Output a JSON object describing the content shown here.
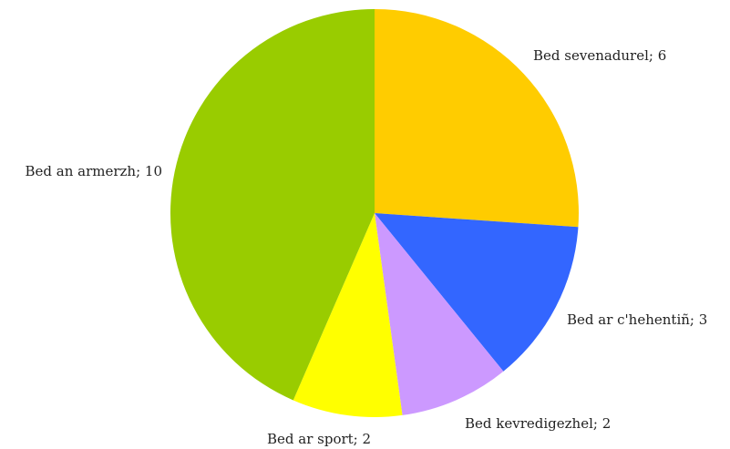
{
  "chart_data": {
    "type": "pie",
    "categories": [
      "Bed sevenadurel; 6",
      "Bed ar c'hehentiñ; 3",
      "Bed kevredigezhel; 2",
      "Bed ar sport; 2",
      "Bed an armerzh; 10"
    ],
    "values": [
      6,
      3,
      2,
      2,
      10
    ],
    "colors": [
      "#ffcc00",
      "#3366ff",
      "#cc99ff",
      "#ffff00",
      "#99cc00"
    ]
  }
}
